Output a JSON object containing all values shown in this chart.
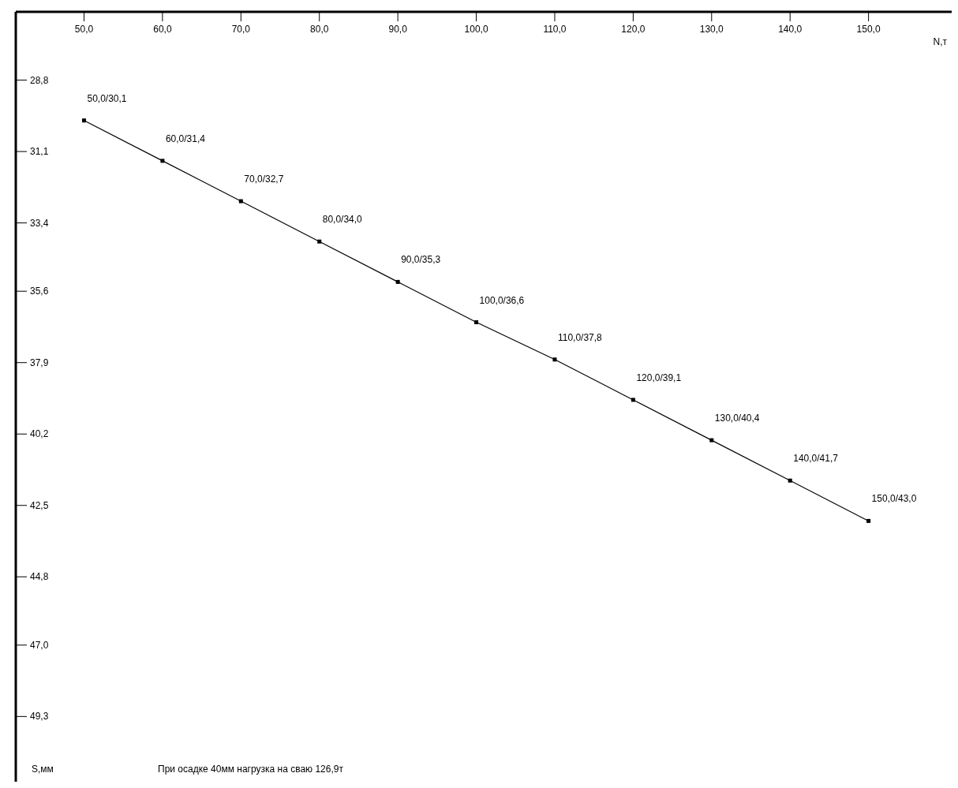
{
  "chart_data": {
    "type": "line",
    "xlabel": "N,т",
    "ylabel": "S,мм",
    "annotations": [
      "При осадке 40мм нагрузка на сваю 126,9т"
    ],
    "x": [
      50,
      60,
      70,
      80,
      90,
      100,
      110,
      120,
      130,
      140,
      150
    ],
    "series": [
      {
        "color": "#000000",
        "values": [
          30.1,
          31.4,
          32.7,
          34.0,
          35.3,
          36.6,
          37.8,
          39.1,
          40.4,
          41.7,
          43.0
        ],
        "value_labels": [
          "50,0/30,1",
          "60,0/31,4",
          "70,0/32,7",
          "80,0/34,0",
          "90,0/35,3",
          "100,0/36,6",
          "110,0/37,8",
          "120,0/39,1",
          "130,0/40,4",
          "140,0/41,7",
          "150,0/43,0"
        ]
      }
    ],
    "xlim": [
      41.3,
      160.6
    ],
    "xticks": [
      {
        "value": 50,
        "label": "50,0"
      },
      {
        "value": 60,
        "label": "60,0"
      },
      {
        "value": 70,
        "label": "70,0"
      },
      {
        "value": 80,
        "label": "80,0"
      },
      {
        "value": 90,
        "label": "90,0"
      },
      {
        "value": 100,
        "label": "100,0"
      },
      {
        "value": 110,
        "label": "110,0"
      },
      {
        "value": 120,
        "label": "120,0"
      },
      {
        "value": 130,
        "label": "130,0"
      },
      {
        "value": 140,
        "label": "140,0"
      },
      {
        "value": 150,
        "label": "150,0"
      }
    ],
    "ylim": [
      51.4,
      26.6
    ],
    "yticks": [
      {
        "value": 28.8,
        "label": "28,8"
      },
      {
        "value": 31.1,
        "label": "31,1"
      },
      {
        "value": 33.4,
        "label": "33,4"
      },
      {
        "value": 35.6,
        "label": "35,6"
      },
      {
        "value": 37.9,
        "label": "37,9"
      },
      {
        "value": 40.2,
        "label": "40,2"
      },
      {
        "value": 42.5,
        "label": "42,5"
      },
      {
        "value": 44.8,
        "label": "44,8"
      },
      {
        "value": 47.0,
        "label": "47,0"
      },
      {
        "value": 49.3,
        "label": "49,3"
      }
    ],
    "marker": "square",
    "line_style": "solid"
  }
}
